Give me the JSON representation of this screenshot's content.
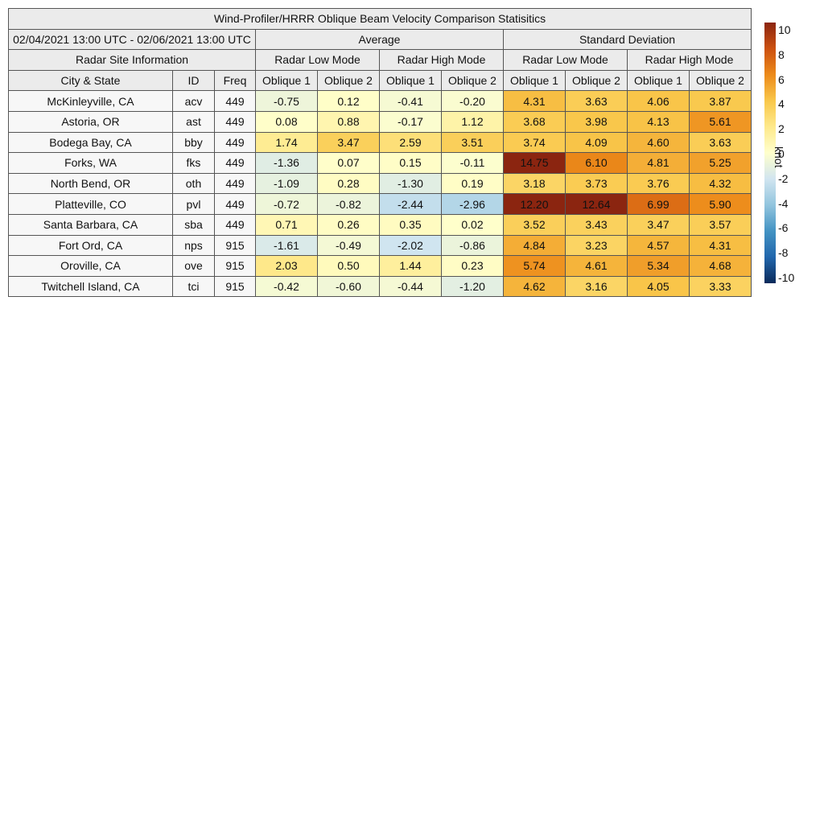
{
  "chart_data": {
    "type": "table",
    "title": "Wind-Profiler/HRRR Oblique Beam Velocity Comparison Statisitics",
    "date_range": "02/04/2021 13:00 UTC - 02/06/2021 13:00 UTC",
    "group_headers": {
      "average": "Average",
      "std": "Standard Deviation"
    },
    "mode_headers": [
      "Radar Low Mode",
      "Radar High Mode",
      "Radar Low Mode",
      "Radar High Mode"
    ],
    "site_info_header": "Radar Site Information",
    "columns": [
      "City & State",
      "ID",
      "Freq",
      "Oblique 1",
      "Oblique 2",
      "Oblique 1",
      "Oblique 2",
      "Oblique 1",
      "Oblique 2",
      "Oblique 1",
      "Oblique 2"
    ],
    "rows": [
      {
        "city": "McKinleyville, CA",
        "id": "acv",
        "freq": "449",
        "avg": [
          "-0.75",
          "0.12",
          "-0.41",
          "-0.20"
        ],
        "std": [
          "4.31",
          "3.63",
          "4.06",
          "3.87"
        ]
      },
      {
        "city": "Astoria, OR",
        "id": "ast",
        "freq": "449",
        "avg": [
          "0.08",
          "0.88",
          "-0.17",
          "1.12"
        ],
        "std": [
          "3.68",
          "3.98",
          "4.13",
          "5.61"
        ]
      },
      {
        "city": "Bodega Bay, CA",
        "id": "bby",
        "freq": "449",
        "avg": [
          "1.74",
          "3.47",
          "2.59",
          "3.51"
        ],
        "std": [
          "3.74",
          "4.09",
          "4.60",
          "3.63"
        ]
      },
      {
        "city": "Forks, WA",
        "id": "fks",
        "freq": "449",
        "avg": [
          "-1.36",
          "0.07",
          "0.15",
          "-0.11"
        ],
        "std": [
          "14.75",
          "6.10",
          "4.81",
          "5.25"
        ]
      },
      {
        "city": "North Bend, OR",
        "id": "oth",
        "freq": "449",
        "avg": [
          "-1.09",
          "0.28",
          "-1.30",
          "0.19"
        ],
        "std": [
          "3.18",
          "3.73",
          "3.76",
          "4.32"
        ]
      },
      {
        "city": "Platteville, CO",
        "id": "pvl",
        "freq": "449",
        "avg": [
          "-0.72",
          "-0.82",
          "-2.44",
          "-2.96"
        ],
        "std": [
          "12.20",
          "12.64",
          "6.99",
          "5.90"
        ]
      },
      {
        "city": "Santa Barbara, CA",
        "id": "sba",
        "freq": "449",
        "avg": [
          "0.71",
          "0.26",
          "0.35",
          "0.02"
        ],
        "std": [
          "3.52",
          "3.43",
          "3.47",
          "3.57"
        ]
      },
      {
        "city": "Fort Ord, CA",
        "id": "nps",
        "freq": "915",
        "avg": [
          "-1.61",
          "-0.49",
          "-2.02",
          "-0.86"
        ],
        "std": [
          "4.84",
          "3.23",
          "4.57",
          "4.31"
        ]
      },
      {
        "city": "Oroville, CA",
        "id": "ove",
        "freq": "915",
        "avg": [
          "2.03",
          "0.50",
          "1.44",
          "0.23"
        ],
        "std": [
          "5.74",
          "4.61",
          "5.34",
          "4.68"
        ]
      },
      {
        "city": "Twitchell Island, CA",
        "id": "tci",
        "freq": "915",
        "avg": [
          "-0.42",
          "-0.60",
          "-0.44",
          "-1.20"
        ],
        "std": [
          "4.62",
          "3.16",
          "4.05",
          "3.33"
        ]
      }
    ],
    "colorbar": {
      "unit": "knot",
      "range": [
        -10,
        10
      ],
      "ticks": [
        "10",
        "8",
        "6",
        "4",
        "2",
        "0",
        "-2",
        "-4",
        "-6",
        "-8",
        "-10"
      ],
      "colors_low_to_high": [
        "#0a2a5a",
        "#2166ac",
        "#4393c3",
        "#92c5de",
        "#d1e5f0",
        "#ffffcc",
        "#fee98b",
        "#f9c74a",
        "#ec8a1a",
        "#cc5010",
        "#8b2510"
      ]
    }
  }
}
